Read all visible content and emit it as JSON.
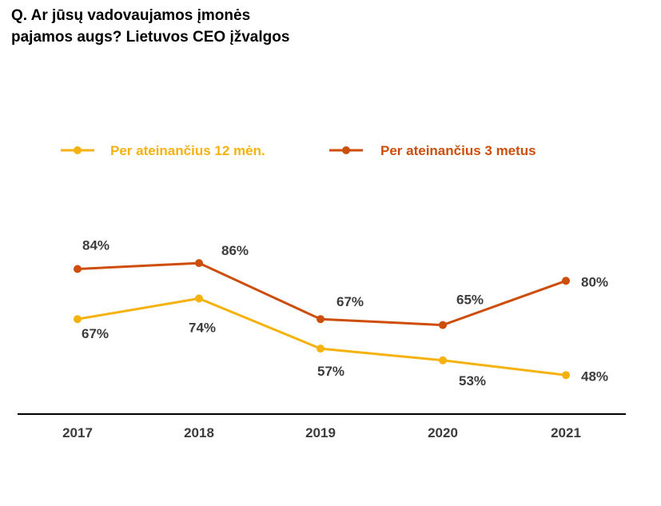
{
  "chart_data": {
    "type": "line",
    "title_lines": [
      "Q. Ar jūsų vadovaujamos įmonės",
      "pajamos augs? Lietuvos CEO įžvalgos"
    ],
    "categories": [
      "2017",
      "2018",
      "2019",
      "2020",
      "2021"
    ],
    "series": [
      {
        "name": "Per ateinančius 12 mėn.",
        "color": "#f5b20f",
        "values": [
          67,
          74,
          57,
          53,
          48
        ],
        "labels": [
          "67%",
          "74%",
          "57%",
          "53%",
          "48%"
        ]
      },
      {
        "name": "Per ateinančius 3 metus",
        "color": "#cc4e0a",
        "values": [
          84,
          86,
          67,
          65,
          80
        ],
        "labels": [
          "84%",
          "86%",
          "67%",
          "65%",
          "80%"
        ]
      }
    ],
    "xlabel": "",
    "ylabel": "",
    "grid": false,
    "legend_position": "top"
  }
}
